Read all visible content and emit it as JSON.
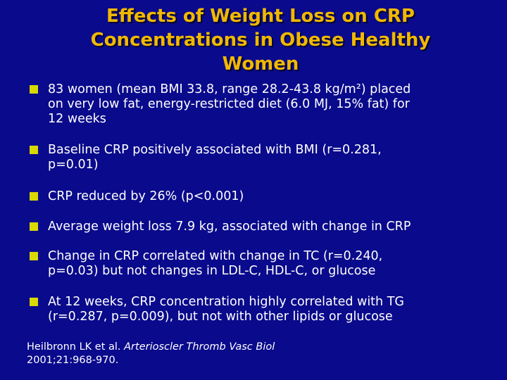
{
  "slide": {
    "title_lines": [
      "Effects of Weight Loss on CRP",
      "Concentrations in Obese Healthy",
      "Women"
    ],
    "bullets": [
      "83 women (mean BMI 33.8, range 28.2-43.8 kg/m²) placed\non very low fat, energy-restricted diet (6.0 MJ, 15% fat) for\n12 weeks",
      "Baseline CRP positively associated with BMI (r=0.281,\np=0.01)",
      "CRP reduced by 26% (p<0.001)",
      "Average weight loss 7.9 kg, associated with change in CRP",
      "Change in CRP correlated with change in TC (r=0.240,\np=0.03) but not changes in LDL-C, HDL-C, or glucose",
      "At 12 weeks, CRP concentration highly correlated with TG\n(r=0.287, p=0.009), but not with other lipids or glucose"
    ],
    "citation": {
      "authors": "Heilbronn LK et al.",
      "journal": "Arterioscler Thromb Vasc Biol",
      "volume": "2001;21:968-970."
    }
  },
  "colors": {
    "background": "#0a0a8c",
    "title": "#f0b800",
    "bullet_marker": "#d9d900",
    "text": "#ffffff"
  }
}
